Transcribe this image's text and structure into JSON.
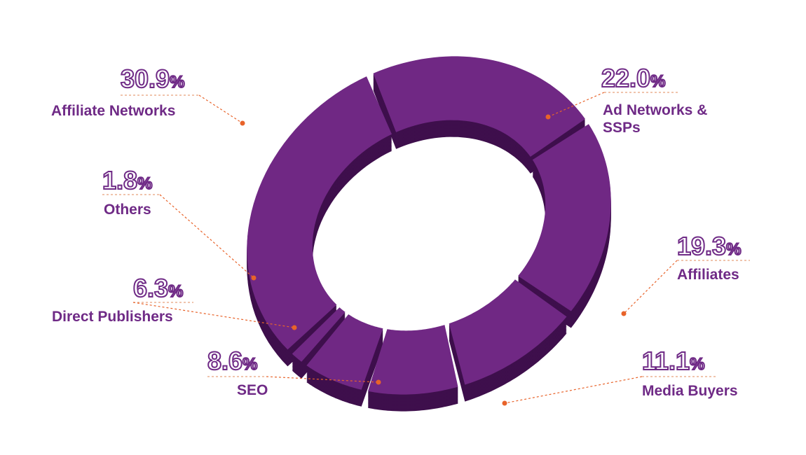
{
  "colors": {
    "slice_top": "#702884",
    "slice_side": "#3e0f4c",
    "label": "#6f2a86",
    "leader": "#e8632a"
  },
  "chart_data": {
    "type": "pie",
    "style": "3d-donut",
    "legend": "none",
    "slices": [
      {
        "label": "Ad Networks & SSPs",
        "value": 22.0,
        "value_text": "22.0",
        "unit": "%"
      },
      {
        "label": "Affiliates",
        "value": 19.3,
        "value_text": "19.3",
        "unit": "%"
      },
      {
        "label": "Media Buyers",
        "value": 11.1,
        "value_text": "11.1",
        "unit": "%"
      },
      {
        "label": "SEO",
        "value": 8.6,
        "value_text": "8.6",
        "unit": "%"
      },
      {
        "label": "Direct Publishers",
        "value": 6.3,
        "value_text": "6.3",
        "unit": "%"
      },
      {
        "label": "Others",
        "value": 1.8,
        "value_text": "1.8",
        "unit": "%"
      },
      {
        "label": "Affiliate Networks",
        "value": 30.9,
        "value_text": "30.9",
        "unit": "%"
      }
    ]
  }
}
